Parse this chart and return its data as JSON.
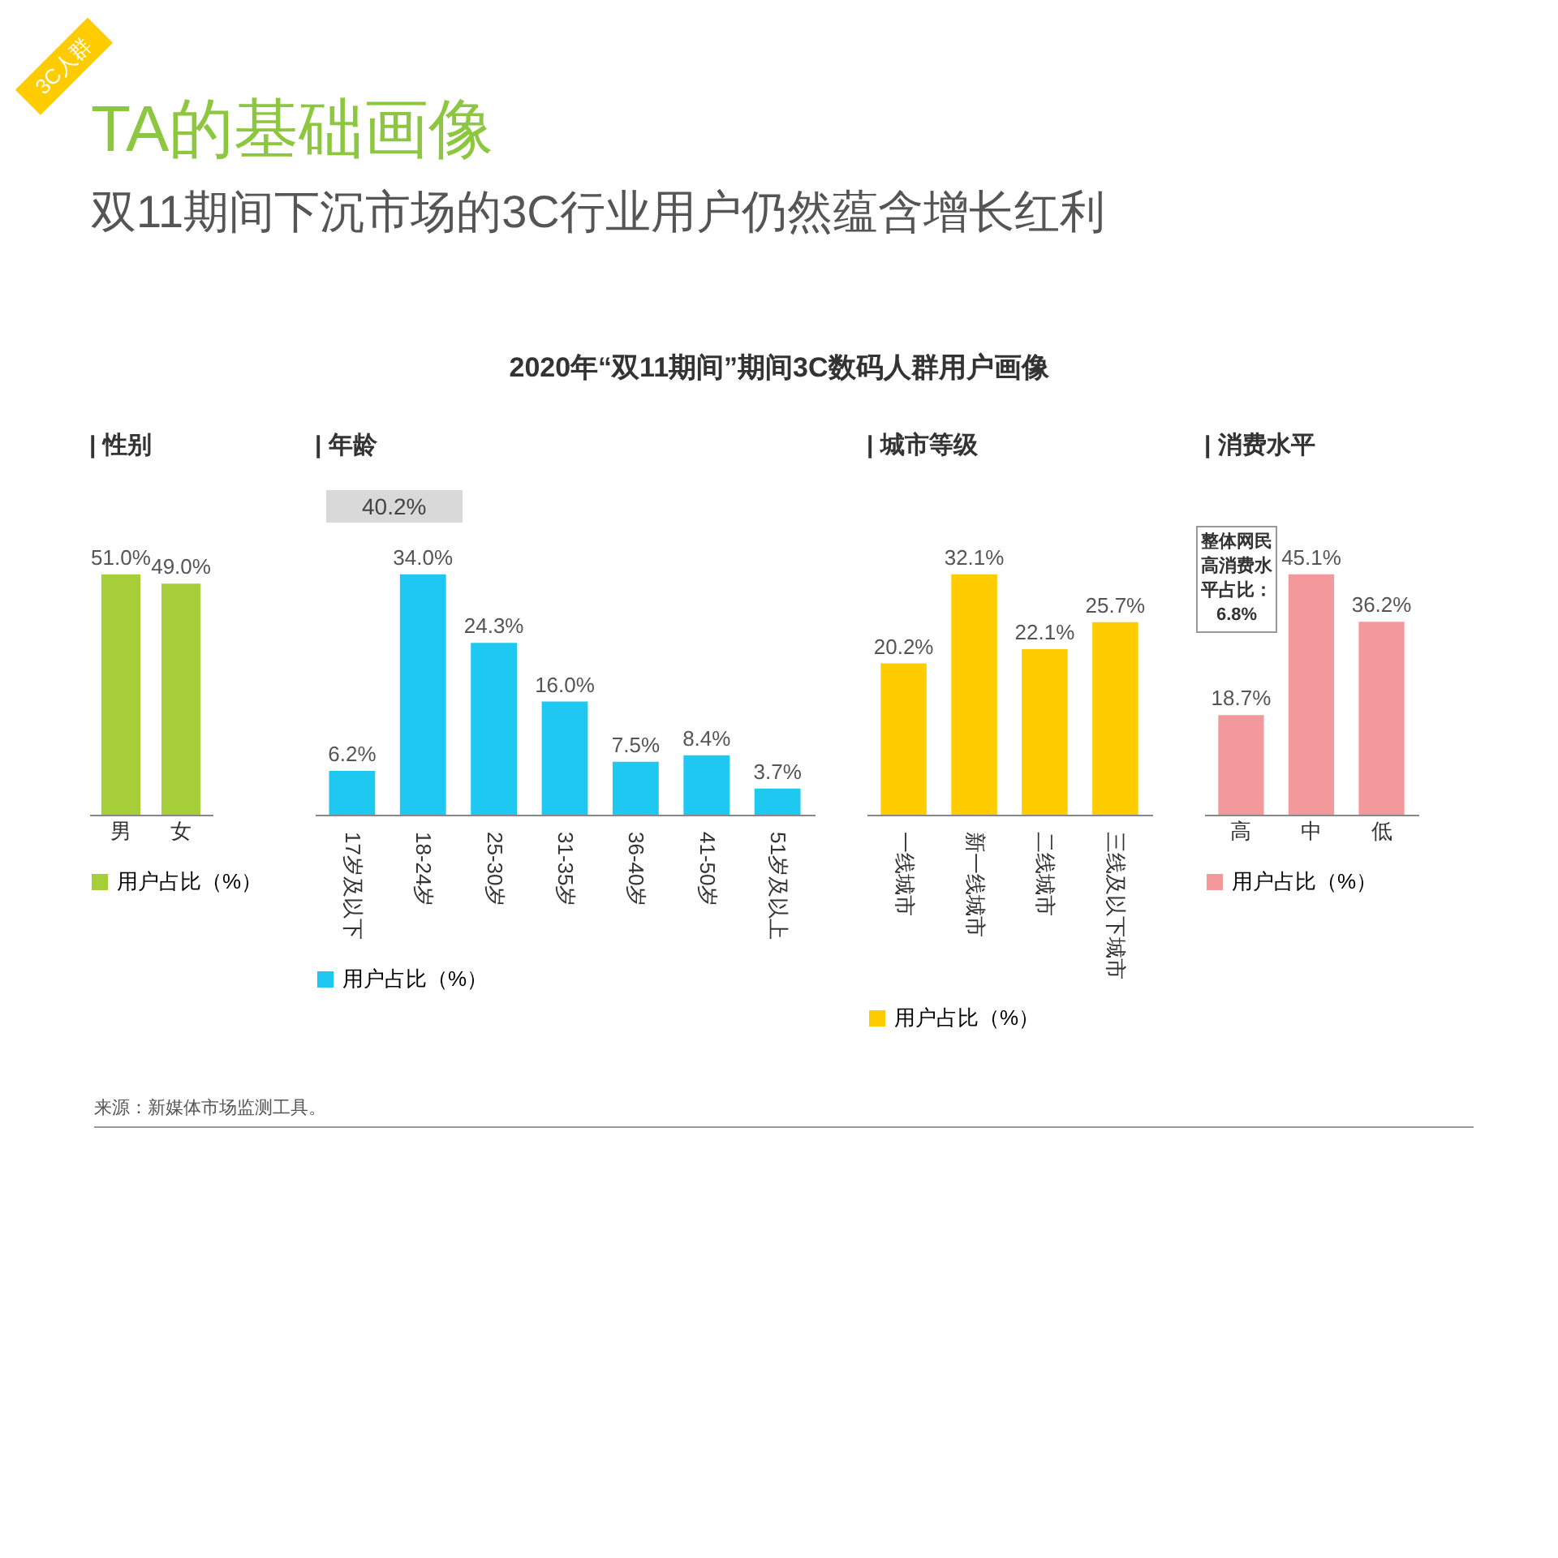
{
  "chart_data": [
    {
      "type": "other",
      "title": "TA的基础画像",
      "subtitle": "双11期间下沉市场的3C行业用户仍然蕴含增长红利",
      "annotations": [
        "3C人群",
        "2020年“双11期间”期间3C数码人群用户画像"
      ]
    },
    {
      "type": "bar",
      "title": "| 性别",
      "categories": [
        "男",
        "女"
      ],
      "series": [
        {
          "name": "用户占比（%）",
          "color": "#a6ce39",
          "values": [
            51.0,
            49.0
          ],
          "value_labels": [
            "51.0%",
            "49.0%"
          ]
        }
      ],
      "legend": "bottom"
    },
    {
      "type": "bar",
      "title": "| 年龄",
      "categories": [
        "17岁及以下",
        "18-24岁",
        "25-30岁",
        "31-35岁",
        "36-40岁",
        "41-50岁",
        "51岁及以上"
      ],
      "series": [
        {
          "name": "用户占比（%）",
          "color": "#1fc8f1",
          "values": [
            6.2,
            34.0,
            24.3,
            16.0,
            7.5,
            8.4,
            3.7
          ],
          "value_labels": [
            "6.2%",
            "34.0%",
            "24.3%",
            "16.0%",
            "7.5%",
            "8.4%",
            "3.7%"
          ]
        }
      ],
      "annotations": [
        "40.2%"
      ],
      "legend": "bottom"
    },
    {
      "type": "bar",
      "title": "| 城市等级",
      "categories": [
        "一线城市",
        "新一线城市",
        "二线城市",
        "三线及以下城市"
      ],
      "series": [
        {
          "name": "用户占比（%）",
          "color": "#ffcc00",
          "values": [
            20.2,
            32.1,
            22.1,
            25.7
          ],
          "value_labels": [
            "20.2%",
            "32.1%",
            "22.1%",
            "25.7%"
          ]
        }
      ],
      "legend": "bottom"
    },
    {
      "type": "bar",
      "title": "| 消费水平",
      "categories": [
        "高",
        "中",
        "低"
      ],
      "series": [
        {
          "name": "用户占比（%）",
          "color": "#f4999b",
          "values": [
            18.7,
            45.1,
            36.2
          ],
          "value_labels": [
            "18.7%",
            "45.1%",
            "36.2%"
          ]
        }
      ],
      "annotations": [
        "整体网民高消费水平占比：6.8%"
      ],
      "legend": "bottom"
    },
    {
      "type": "other",
      "annotations": [
        "来源：新媒体市场监测工具。"
      ]
    }
  ]
}
